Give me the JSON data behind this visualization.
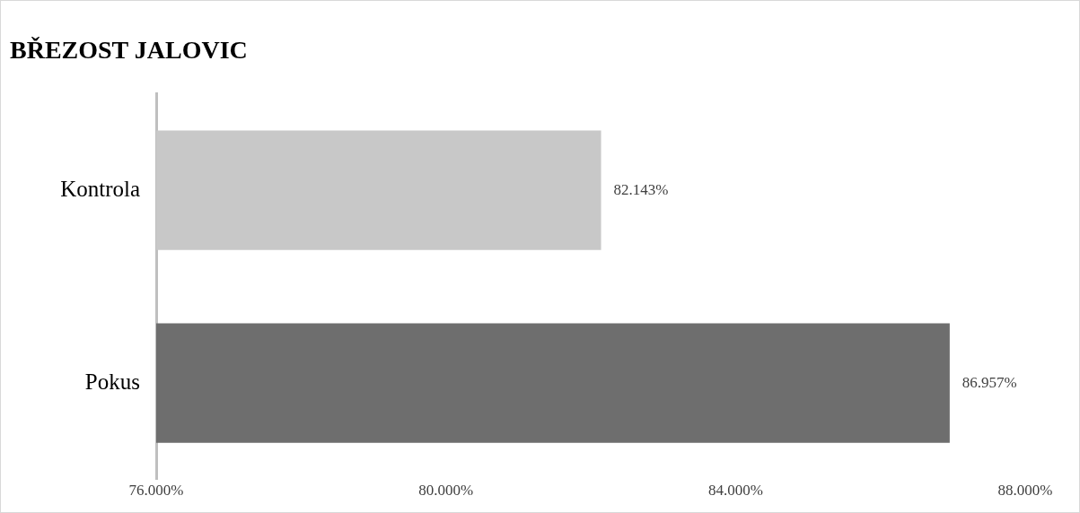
{
  "chart_data": {
    "type": "bar",
    "orientation": "horizontal",
    "title": "BŘEZOST JALOVIC",
    "categories": [
      "Kontrola",
      "Pokus"
    ],
    "values": [
      82.143,
      86.957
    ],
    "colors": [
      "#c8c8c8",
      "#6e6e6e"
    ],
    "value_labels": [
      "82.143%",
      "86.957%"
    ],
    "xlim": [
      76,
      88
    ],
    "xticks": [
      {
        "value": 76,
        "label": "76.000%"
      },
      {
        "value": 80,
        "label": "80.000%"
      },
      {
        "value": 84,
        "label": "84.000%"
      },
      {
        "value": 88,
        "label": "88.000%"
      }
    ]
  }
}
